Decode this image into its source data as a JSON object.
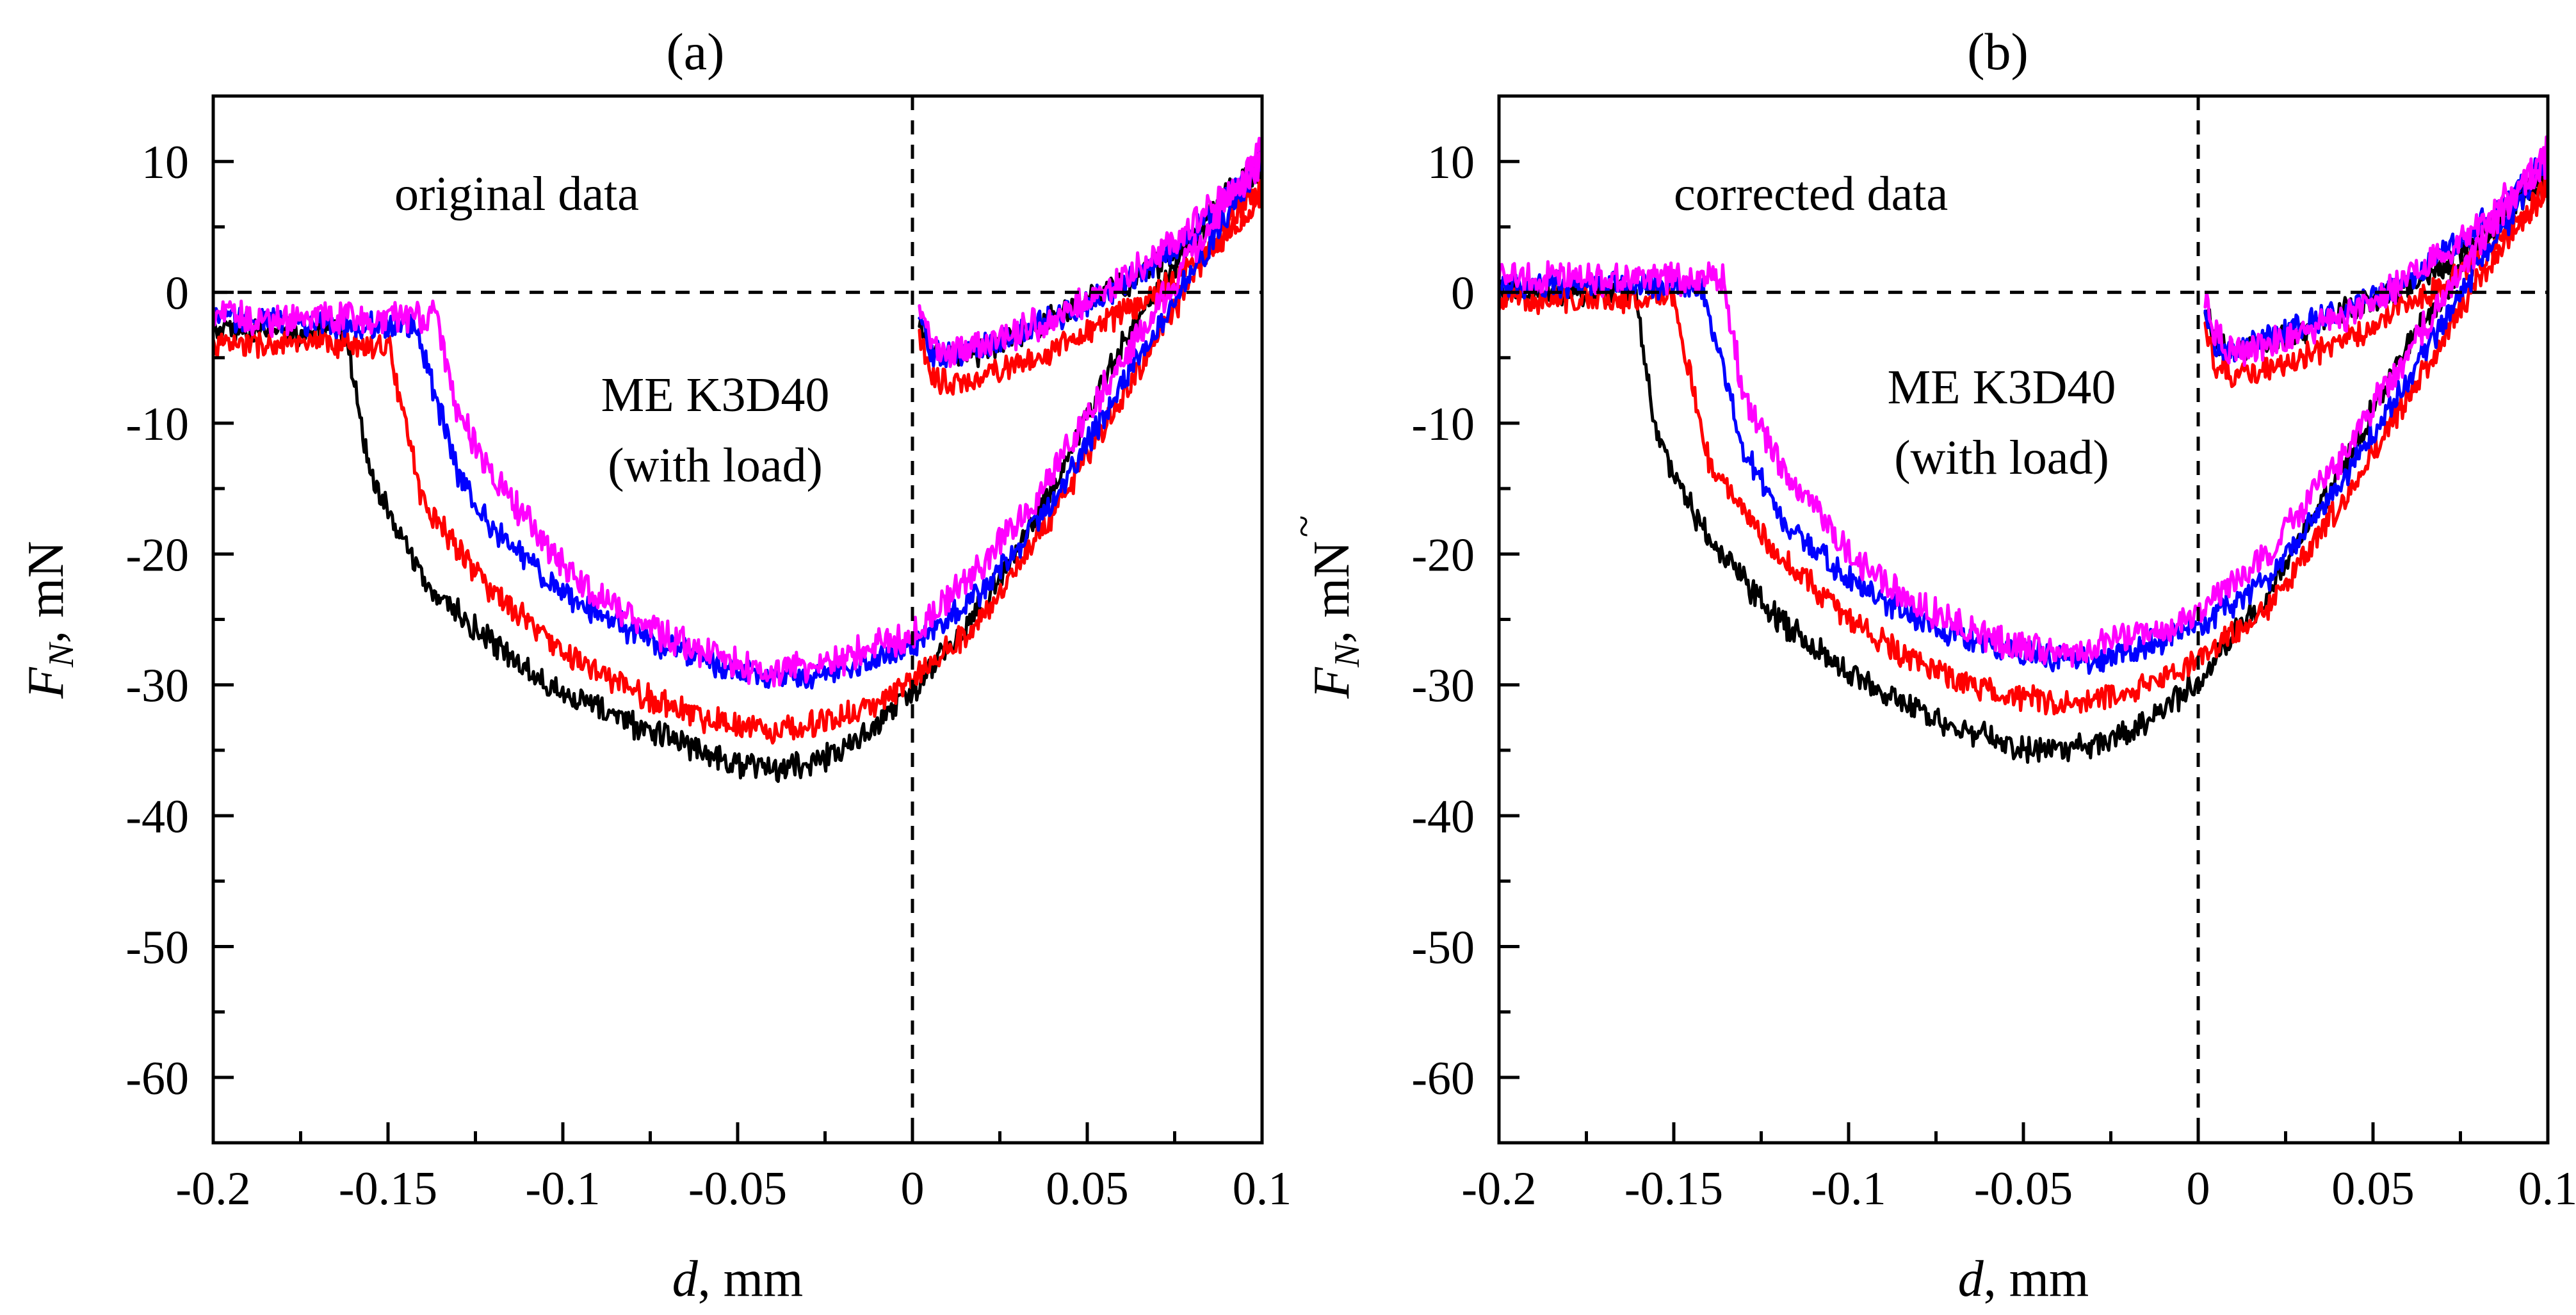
{
  "chart_data": [
    {
      "type": "line",
      "panel_label": "(a)",
      "title": "(a)",
      "annotation": "original data",
      "sample_label_line1": "ME K3D40",
      "sample_label_line2": "(with load)",
      "xlabel_italic": "d",
      "xlabel_rest": ", mm",
      "ylabel_italic": "F",
      "ylabel_sub": "N",
      "ylabel_rest": ", mN",
      "ylabel_tilde": false,
      "xlim": [
        -0.2,
        0.1
      ],
      "ylim": [
        -65,
        15
      ],
      "x_ticks": [
        -0.2,
        -0.15,
        -0.1,
        -0.05,
        0,
        0.05,
        0.1
      ],
      "x_tick_labels": [
        "-0.2",
        "-0.15",
        "-0.1",
        "-0.05",
        "0",
        "0.05",
        "0.1"
      ],
      "y_ticks": [
        10,
        0,
        -10,
        -20,
        -30,
        -40,
        -50,
        -60
      ],
      "y_tick_labels": [
        "10",
        "0",
        "-10",
        "-20",
        "-30",
        "-40",
        "-50",
        "-60"
      ],
      "reference_lines": {
        "y": 0,
        "x": 0
      },
      "series": [
        {
          "name": "black",
          "color": "#000000",
          "noise": 0.9,
          "approach_x": [
            -0.2,
            -0.19,
            -0.18,
            -0.17,
            -0.165,
            -0.162,
            -0.155,
            -0.14,
            -0.12,
            -0.1,
            -0.08,
            -0.06,
            -0.05,
            -0.04,
            -0.03,
            -0.02,
            -0.01,
            0,
            0.02,
            0.04,
            0.06,
            0.08,
            0.095,
            0.1
          ],
          "approach_y": [
            -3,
            -3,
            -3,
            -3,
            -3,
            -3,
            -14,
            -22,
            -27,
            -30.5,
            -33,
            -35,
            -36,
            -36.5,
            -36,
            -35,
            -33,
            -30.5,
            -24,
            -15,
            -4,
            4,
            9,
            10
          ],
          "retract_x": [
            0.002,
            0.005,
            0.01,
            0.02,
            0.03,
            0.04,
            0.05,
            0.06,
            0.07,
            0.08,
            0.09,
            0.1
          ],
          "retract_y": [
            -2,
            -4,
            -5,
            -4.5,
            -3.5,
            -2,
            -0.5,
            0.5,
            2,
            4,
            6.5,
            9
          ]
        },
        {
          "name": "red",
          "color": "#ff0000",
          "noise": 0.9,
          "approach_x": [
            -0.2,
            -0.19,
            -0.18,
            -0.16,
            -0.152,
            -0.15,
            -0.14,
            -0.12,
            -0.1,
            -0.08,
            -0.06,
            -0.05,
            -0.04,
            -0.03,
            -0.02,
            -0.01,
            0,
            0.02,
            0.04,
            0.06,
            0.08,
            0.095,
            0.1
          ],
          "approach_y": [
            -4,
            -4,
            -4,
            -4,
            -4,
            -4,
            -16,
            -23,
            -27.5,
            -30.5,
            -32.5,
            -33,
            -33.5,
            -33,
            -32.5,
            -31.5,
            -29.5,
            -25,
            -17,
            -8,
            1,
            7,
            8
          ],
          "retract_x": [
            0.002,
            0.005,
            0.01,
            0.02,
            0.03,
            0.04,
            0.05,
            0.06,
            0.07,
            0.08,
            0.09,
            0.1
          ],
          "retract_y": [
            -3.5,
            -6,
            -7,
            -6.5,
            -5.5,
            -4.5,
            -3,
            -1.5,
            0,
            2,
            4.5,
            7
          ]
        },
        {
          "name": "blue",
          "color": "#0000ff",
          "noise": 0.9,
          "approach_x": [
            -0.2,
            -0.19,
            -0.17,
            -0.16,
            -0.145,
            -0.142,
            -0.13,
            -0.12,
            -0.1,
            -0.08,
            -0.06,
            -0.05,
            -0.04,
            -0.03,
            -0.02,
            -0.01,
            0,
            0.02,
            0.04,
            0.06,
            0.08,
            0.095,
            0.1
          ],
          "approach_y": [
            -2,
            -2,
            -2.5,
            -2.5,
            -2.5,
            -2.5,
            -14,
            -18,
            -23,
            -26,
            -28,
            -29,
            -29.5,
            -29.5,
            -29,
            -28,
            -27,
            -23,
            -16,
            -7,
            1.5,
            8,
            10
          ],
          "retract_x": [
            0.002,
            0.005,
            0.01,
            0.02,
            0.03,
            0.04,
            0.05,
            0.06,
            0.07,
            0.08,
            0.09,
            0.1
          ],
          "retract_y": [
            -2,
            -4.5,
            -5,
            -4,
            -3,
            -2,
            -1,
            0.5,
            2.5,
            4.5,
            7,
            10
          ]
        },
        {
          "name": "magenta",
          "color": "#ff00ff",
          "noise": 1.1,
          "approach_x": [
            -0.2,
            -0.19,
            -0.17,
            -0.16,
            -0.14,
            -0.136,
            -0.13,
            -0.12,
            -0.1,
            -0.08,
            -0.06,
            -0.05,
            -0.04,
            -0.03,
            -0.02,
            -0.01,
            0,
            0.02,
            0.04,
            0.06,
            0.08,
            0.095,
            0.1
          ],
          "approach_y": [
            -1.5,
            -2,
            -2,
            -2,
            -2,
            -2,
            -9,
            -14,
            -21,
            -25,
            -27.5,
            -28.5,
            -29,
            -28.5,
            -28,
            -27,
            -26,
            -21,
            -14,
            -5,
            3,
            9,
            11
          ],
          "retract_x": [
            0.002,
            0.005,
            0.01,
            0.02,
            0.03,
            0.04,
            0.05,
            0.06,
            0.07,
            0.08,
            0.09,
            0.1
          ],
          "retract_y": [
            -1,
            -3.5,
            -4.5,
            -4,
            -3,
            -2,
            -0.5,
            1,
            3,
            5,
            7.5,
            10
          ]
        }
      ]
    },
    {
      "type": "line",
      "panel_label": "(b)",
      "title": "(b)",
      "annotation": "corrected data",
      "sample_label_line1": "ME K3D40",
      "sample_label_line2": "(with load)",
      "xlabel_italic": "d",
      "xlabel_rest": ", mm",
      "ylabel_italic": "F",
      "ylabel_sub": "N",
      "ylabel_rest": ", mN",
      "ylabel_tilde": true,
      "xlim": [
        -0.2,
        0.1
      ],
      "ylim": [
        -65,
        15
      ],
      "x_ticks": [
        -0.2,
        -0.15,
        -0.1,
        -0.05,
        0,
        0.05,
        0.1
      ],
      "x_tick_labels": [
        "-0.2",
        "-0.15",
        "-0.1",
        "-0.05",
        "0",
        "0.05",
        "0.1"
      ],
      "y_ticks": [
        10,
        0,
        -10,
        -20,
        -30,
        -40,
        -50,
        -60
      ],
      "y_tick_labels": [
        "10",
        "0",
        "-10",
        "-20",
        "-30",
        "-40",
        "-50",
        "-60"
      ],
      "reference_lines": {
        "y": 0,
        "x": 0
      },
      "series": [
        {
          "name": "black",
          "color": "#000000",
          "noise": 0.9,
          "approach_x": [
            -0.2,
            -0.19,
            -0.18,
            -0.17,
            -0.164,
            -0.161,
            -0.155,
            -0.14,
            -0.12,
            -0.1,
            -0.08,
            -0.06,
            -0.05,
            -0.04,
            -0.03,
            -0.02,
            -0.01,
            0,
            0.02,
            0.04,
            0.06,
            0.08,
            0.095,
            0.1
          ],
          "approach_y": [
            0,
            0,
            0,
            0,
            0,
            0,
            -11,
            -19,
            -25,
            -29,
            -32,
            -34,
            -35,
            -35,
            -34.5,
            -33.5,
            -32,
            -29.5,
            -23,
            -14,
            -4,
            3.5,
            8.5,
            9.5
          ],
          "retract_x": [
            0.002,
            0.005,
            0.01,
            0.02,
            0.03,
            0.04,
            0.05,
            0.06,
            0.07,
            0.08,
            0.09,
            0.1
          ],
          "retract_y": [
            -1,
            -3.5,
            -4.5,
            -4,
            -3,
            -1.5,
            -0.5,
            0.5,
            2,
            4,
            6.5,
            9
          ]
        },
        {
          "name": "red",
          "color": "#ff0000",
          "noise": 0.9,
          "approach_x": [
            -0.2,
            -0.19,
            -0.18,
            -0.16,
            -0.152,
            -0.15,
            -0.14,
            -0.12,
            -0.1,
            -0.08,
            -0.06,
            -0.05,
            -0.04,
            -0.03,
            -0.02,
            -0.01,
            0,
            0.02,
            0.04,
            0.06,
            0.08,
            0.095,
            0.1
          ],
          "approach_y": [
            -0.5,
            -0.5,
            -0.5,
            -0.5,
            -0.5,
            -0.5,
            -13,
            -20,
            -25,
            -28.5,
            -30.5,
            -31,
            -31.5,
            -31,
            -30.5,
            -29.5,
            -28,
            -24,
            -16.5,
            -8,
            1,
            6.5,
            8
          ],
          "retract_x": [
            0.002,
            0.005,
            0.01,
            0.02,
            0.03,
            0.04,
            0.05,
            0.06,
            0.07,
            0.08,
            0.09,
            0.1
          ],
          "retract_y": [
            -3,
            -5.5,
            -6.5,
            -6,
            -5,
            -4,
            -2.5,
            -1,
            0.5,
            2.5,
            5,
            7.5
          ]
        },
        {
          "name": "blue",
          "color": "#0000ff",
          "noise": 0.9,
          "approach_x": [
            -0.2,
            -0.19,
            -0.17,
            -0.16,
            -0.145,
            -0.142,
            -0.13,
            -0.12,
            -0.1,
            -0.08,
            -0.06,
            -0.05,
            -0.04,
            -0.03,
            -0.02,
            -0.01,
            0,
            0.02,
            0.04,
            0.06,
            0.08,
            0.095,
            0.1
          ],
          "approach_y": [
            0.5,
            0.5,
            0.5,
            0.5,
            0.5,
            0.5,
            -12,
            -17,
            -22,
            -25,
            -27,
            -27.5,
            -28,
            -28,
            -27.5,
            -26.5,
            -25.5,
            -22,
            -15,
            -6.5,
            2,
            8,
            10
          ],
          "retract_x": [
            0.002,
            0.005,
            0.01,
            0.02,
            0.03,
            0.04,
            0.05,
            0.06,
            0.07,
            0.08,
            0.09,
            0.1
          ],
          "retract_y": [
            -1.5,
            -4,
            -4.5,
            -3.5,
            -2.5,
            -1.5,
            -0.5,
            1,
            3,
            5,
            7.5,
            10
          ]
        },
        {
          "name": "magenta",
          "color": "#ff00ff",
          "noise": 1.1,
          "approach_x": [
            -0.2,
            -0.19,
            -0.17,
            -0.16,
            -0.14,
            -0.136,
            -0.13,
            -0.12,
            -0.1,
            -0.08,
            -0.06,
            -0.05,
            -0.04,
            -0.03,
            -0.02,
            -0.01,
            0,
            0.02,
            0.04,
            0.06,
            0.08,
            0.095,
            0.1
          ],
          "approach_y": [
            1.5,
            1,
            1,
            1,
            1,
            1,
            -8,
            -13,
            -20,
            -24,
            -26.5,
            -27,
            -27.5,
            -27,
            -26.5,
            -25.5,
            -24.5,
            -20,
            -13,
            -4.5,
            3.5,
            9,
            11
          ],
          "retract_x": [
            0.002,
            0.005,
            0.01,
            0.02,
            0.03,
            0.04,
            0.05,
            0.06,
            0.07,
            0.08,
            0.09,
            0.1
          ],
          "retract_y": [
            -0.5,
            -3.5,
            -4.5,
            -4,
            -3,
            -2,
            -0.5,
            1,
            3,
            5,
            7.5,
            10
          ]
        }
      ]
    }
  ]
}
